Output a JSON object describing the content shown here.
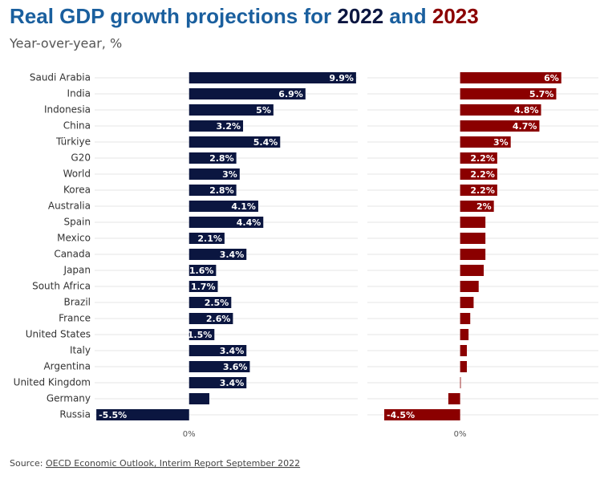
{
  "chart_data": {
    "type": "bar",
    "orientation": "horizontal",
    "title": [
      "Real GDP growth projections for ",
      "2022",
      " and ",
      "2023"
    ],
    "title_colors": [
      "#1a5f9e",
      "#0b1640",
      "#1a5f9e",
      "#8b0000"
    ],
    "subtitle": "Year-over-year, %",
    "source": [
      "Source: ",
      "OECD Economic Outlook, Interim Report September 2022"
    ],
    "categories": [
      "Saudi Arabia",
      "India",
      "Indonesia",
      "China",
      "Türkiye",
      "G20",
      "World",
      "Korea",
      "Australia",
      "Spain",
      "Mexico",
      "Canada",
      "Japan",
      "South Africa",
      "Brazil",
      "France",
      "United States",
      "Italy",
      "Argentina",
      "United Kingdom",
      "Germany",
      "Russia"
    ],
    "grid": true,
    "series": [
      {
        "color": "#0b1640",
        "xlim": [
          -5.6,
          10
        ],
        "xticks": [
          {
            "value": 0,
            "label": "0%"
          }
        ],
        "values": [
          9.9,
          6.9,
          5,
          3.2,
          5.4,
          2.8,
          3,
          2.8,
          4.1,
          4.4,
          2.1,
          3.4,
          1.6,
          1.7,
          2.5,
          2.6,
          1.5,
          3.4,
          3.6,
          3.4,
          1.2,
          -5.5
        ],
        "value_labels": [
          "9.9%",
          "6.9%",
          "5%",
          "3.2%",
          "5.4%",
          "2.8%",
          "3%",
          "2.8%",
          "4.1%",
          "4.4%",
          "2.1%",
          "3.4%",
          "1.6%",
          "1.7%",
          "2.5%",
          "2.6%",
          "1.5%",
          "3.4%",
          "3.6%",
          "3.4%",
          null,
          "-5.5%"
        ]
      },
      {
        "color": "#8b0000",
        "xlim": [
          -5.5,
          8.2
        ],
        "xticks": [
          {
            "value": 0,
            "label": "0%"
          }
        ],
        "values": [
          6,
          5.7,
          4.8,
          4.7,
          3,
          2.2,
          2.2,
          2.2,
          2,
          1.5,
          1.5,
          1.5,
          1.4,
          1.1,
          0.8,
          0.6,
          0.5,
          0.4,
          0.4,
          0,
          -0.7,
          -4.5
        ],
        "value_labels": [
          "6%",
          "5.7%",
          "4.8%",
          "4.7%",
          "3%",
          "2.2%",
          "2.2%",
          "2.2%",
          "2%",
          null,
          null,
          null,
          null,
          null,
          null,
          null,
          null,
          null,
          null,
          null,
          null,
          "-4.5%"
        ]
      }
    ]
  }
}
